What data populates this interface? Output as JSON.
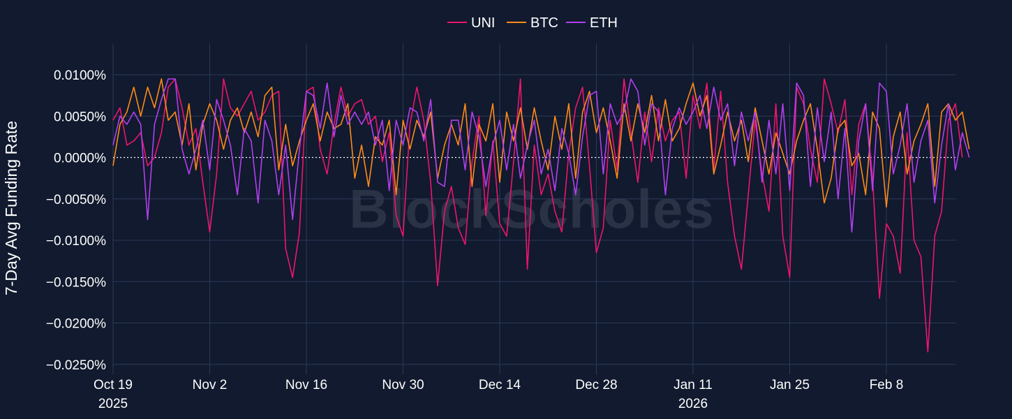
{
  "chart_data": {
    "type": "line",
    "title": "",
    "xlabel": "",
    "ylabel": "7-Day Avg Funding Rate",
    "ylim": [
      -0.0262,
      0.0138
    ],
    "y_ticks": [
      {
        "value": 0.01,
        "label": "0.0100%"
      },
      {
        "value": 0.005,
        "label": "0.0050%"
      },
      {
        "value": 0.0,
        "label": "0.0000%"
      },
      {
        "value": -0.005,
        "label": "−0.0050%"
      },
      {
        "value": -0.01,
        "label": "−0.0100%"
      },
      {
        "value": -0.015,
        "label": "−0.0150%"
      },
      {
        "value": -0.02,
        "label": "−0.0200%"
      },
      {
        "value": -0.025,
        "label": "−0.0250%"
      }
    ],
    "x_start": "2025-10-19",
    "x_end": "2026-02-15",
    "x_ticks": [
      {
        "day": 0,
        "label": "Oct 19",
        "sublabel": "2025"
      },
      {
        "day": 14,
        "label": "Nov 2",
        "sublabel": ""
      },
      {
        "day": 28,
        "label": "Nov 16",
        "sublabel": ""
      },
      {
        "day": 42,
        "label": "Nov 30",
        "sublabel": ""
      },
      {
        "day": 56,
        "label": "Dec 14",
        "sublabel": ""
      },
      {
        "day": 70,
        "label": "Dec 28",
        "sublabel": ""
      },
      {
        "day": 84,
        "label": "Jan 11",
        "sublabel": "2026"
      },
      {
        "day": 98,
        "label": "Jan 25",
        "sublabel": ""
      },
      {
        "day": 112,
        "label": "Feb 8",
        "sublabel": ""
      }
    ],
    "grid": true,
    "zero_line": "dotted",
    "legend_position": "top-center",
    "watermark": "BlockScholes",
    "x_step_days": 1,
    "series": [
      {
        "name": "UNI",
        "color": "#f0146e",
        "values": [
          0.0045,
          0.006,
          0.0015,
          0.002,
          0.003,
          -0.001,
          0.0,
          0.003,
          0.0085,
          0.0095,
          0.006,
          0.0015,
          0.0035,
          -0.003,
          -0.009,
          -0.002,
          0.0095,
          0.006,
          0.005,
          0.0065,
          0.008,
          0.0045,
          0.0055,
          0.0075,
          0.008,
          -0.011,
          -0.0145,
          -0.009,
          0.008,
          0.0085,
          0.001,
          -0.002,
          0.004,
          0.0085,
          0.005,
          0.0065,
          0.007,
          0.004,
          0.005,
          -0.0005,
          0.003,
          -0.007,
          -0.0095,
          0.004,
          0.0085,
          0.0045,
          -0.003,
          -0.0155,
          -0.0065,
          -0.0035,
          -0.0085,
          -0.0105,
          -0.0005,
          0.005,
          -0.007,
          0.002,
          -0.008,
          -0.0095,
          -0.0005,
          0.0095,
          -0.0135,
          0.0015,
          -0.0045,
          -0.002,
          -0.0065,
          -0.009,
          0.0005,
          0.006,
          0.0085,
          -0.001,
          -0.0115,
          -0.0085,
          0.0045,
          -0.0015,
          0.0095,
          0.003,
          -0.003,
          0.0055,
          -0.0005,
          0.006,
          0.002,
          0.0045,
          0.0055,
          -0.0025,
          0.0075,
          0.0035,
          0.009,
          -0.0015,
          0.008,
          -0.003,
          -0.0095,
          -0.0135,
          -0.0045,
          0.0045,
          -0.002,
          -0.0065,
          0.0065,
          -0.0095,
          -0.0145,
          0.0085,
          0.0065,
          0.001,
          -0.003,
          0.0095,
          0.0065,
          0.003,
          0.007,
          -0.0045,
          0.004,
          0.0065,
          -0.0025,
          -0.017,
          -0.008,
          -0.0095,
          -0.014,
          0.003,
          -0.01,
          -0.012,
          -0.0235,
          -0.0095,
          -0.0065,
          0.0045,
          0.0065,
          0.0
        ]
      },
      {
        "name": "BTC",
        "color": "#ff8a18",
        "values": [
          -0.001,
          0.004,
          0.0055,
          0.0085,
          0.005,
          0.0085,
          0.006,
          0.0095,
          0.0045,
          0.0055,
          0.0015,
          0.0065,
          -0.0015,
          0.004,
          0.0065,
          0.0045,
          0.001,
          0.0045,
          0.006,
          0.003,
          0.0055,
          0.0025,
          0.0075,
          0.0085,
          -0.0015,
          0.004,
          -0.001,
          0.002,
          0.0045,
          0.0065,
          0.002,
          0.0055,
          0.0035,
          0.004,
          0.0065,
          -0.0025,
          0.0015,
          -0.0035,
          0.0025,
          0.0015,
          0.0045,
          -0.0045,
          0.0045,
          0.001,
          0.0045,
          0.0025,
          0.0055,
          -0.0025,
          0.0015,
          0.004,
          0.0015,
          0.0065,
          -0.0035,
          0.004,
          0.002,
          0.0065,
          -0.003,
          0.0055,
          0.002,
          0.006,
          0.001,
          0.006,
          0.002,
          -0.0015,
          0.005,
          0.001,
          0.0065,
          -0.0025,
          0.0055,
          0.008,
          0.003,
          0.006,
          0.002,
          -0.0025,
          0.0065,
          0.002,
          0.0065,
          0.003,
          0.0075,
          0.002,
          0.007,
          0.002,
          0.0035,
          0.0065,
          0.009,
          0.005,
          0.0075,
          -0.002,
          0.0015,
          0.0055,
          0.002,
          0.0045,
          -0.0005,
          0.006,
          0.002,
          -0.002,
          0.003,
          0.0005,
          -0.002,
          0.002,
          0.0045,
          0.0065,
          0.001,
          -0.0055,
          -0.0025,
          0.0035,
          0.0045,
          -0.001,
          0.0005,
          -0.0045,
          0.0055,
          0.0035,
          -0.006,
          0.0025,
          0.0055,
          -0.002,
          0.002,
          0.004,
          0.0065,
          -0.0035,
          0.0055,
          0.0065,
          0.0045,
          0.0055,
          0.001
        ]
      },
      {
        "name": "ETH",
        "color": "#b23ff0",
        "values": [
          0.0015,
          0.005,
          0.004,
          0.0055,
          0.004,
          -0.0075,
          0.004,
          0.007,
          0.0095,
          0.0095,
          0.001,
          -0.002,
          0.001,
          0.0045,
          -0.0015,
          0.007,
          0.0045,
          0.0015,
          -0.0045,
          0.0035,
          0.002,
          -0.0055,
          0.0045,
          0.002,
          -0.0045,
          0.0015,
          -0.0075,
          0.001,
          0.008,
          0.0075,
          0.0035,
          0.009,
          0.0025,
          0.0075,
          0.004,
          0.0055,
          0.004,
          0.0055,
          0.0015,
          0.0045,
          -0.004,
          0.0045,
          0.0015,
          0.006,
          0.0055,
          0.002,
          0.007,
          -0.003,
          -0.0035,
          0.0045,
          0.0045,
          -0.0015,
          0.0055,
          0.0025,
          -0.0035,
          0.0015,
          0.0045,
          -0.0015,
          0.004,
          -0.0025,
          0.0015,
          0.0045,
          -0.002,
          0.001,
          -0.004,
          0.0035,
          0.0005,
          -0.0045,
          0.0025,
          0.0075,
          0.008,
          -0.002,
          0.0065,
          0.004,
          0.0055,
          0.0095,
          0.008,
          0.0015,
          0.0065,
          0.0055,
          -0.0045,
          0.0035,
          0.006,
          0.004,
          0.0055,
          0.0075,
          0.0035,
          0.0085,
          0.0045,
          0.0065,
          -0.001,
          0.0055,
          0.002,
          0.0055,
          -0.003,
          0.0045,
          -0.002,
          0.0065,
          -0.004,
          0.009,
          0.0075,
          -0.0035,
          0.006,
          -0.0005,
          0.0055,
          -0.005,
          0.0035,
          -0.009,
          0.002,
          0.0065,
          -0.004,
          0.009,
          0.008,
          -0.002,
          0.0015,
          0.0065,
          -0.003,
          0.002,
          0.0045,
          -0.0055,
          0.0015,
          0.0065,
          -0.0015,
          0.003,
          0.0
        ]
      }
    ]
  }
}
